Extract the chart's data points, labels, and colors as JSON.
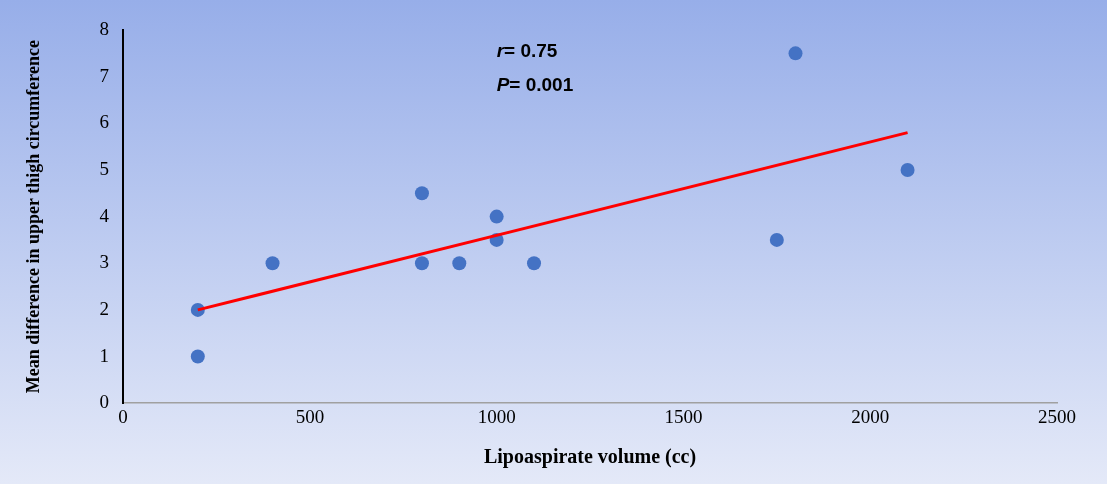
{
  "chart_data": {
    "type": "scatter",
    "xlabel": "Lipoaspirate volume (cc)",
    "ylabel": "Mean difference in upper thigh circumference",
    "annotations": [
      "r= 0.75",
      "P= 0.001"
    ],
    "xlim": [
      0,
      2500
    ],
    "xticks": [
      0,
      500,
      1000,
      1500,
      2000,
      2500
    ],
    "ylim": [
      0,
      8
    ],
    "yticks": [
      0,
      1,
      2,
      3,
      4,
      5,
      6,
      7,
      8
    ],
    "grid": false,
    "marker": "circle",
    "series": [
      {
        "type": "scatter",
        "color": "#4472c4",
        "x": [
          200,
          200,
          400,
          800,
          800,
          900,
          1000,
          1000,
          1100,
          1750,
          1800,
          2100
        ],
        "values": [
          2,
          1,
          3,
          4.5,
          3,
          3,
          4,
          3.5,
          3,
          3.5,
          7.5,
          5
        ]
      },
      {
        "type": "line",
        "color": "#ff0000",
        "x": [
          200,
          2100
        ],
        "values": [
          2,
          5.8
        ],
        "marker": "none",
        "line_style": "solid"
      }
    ]
  }
}
